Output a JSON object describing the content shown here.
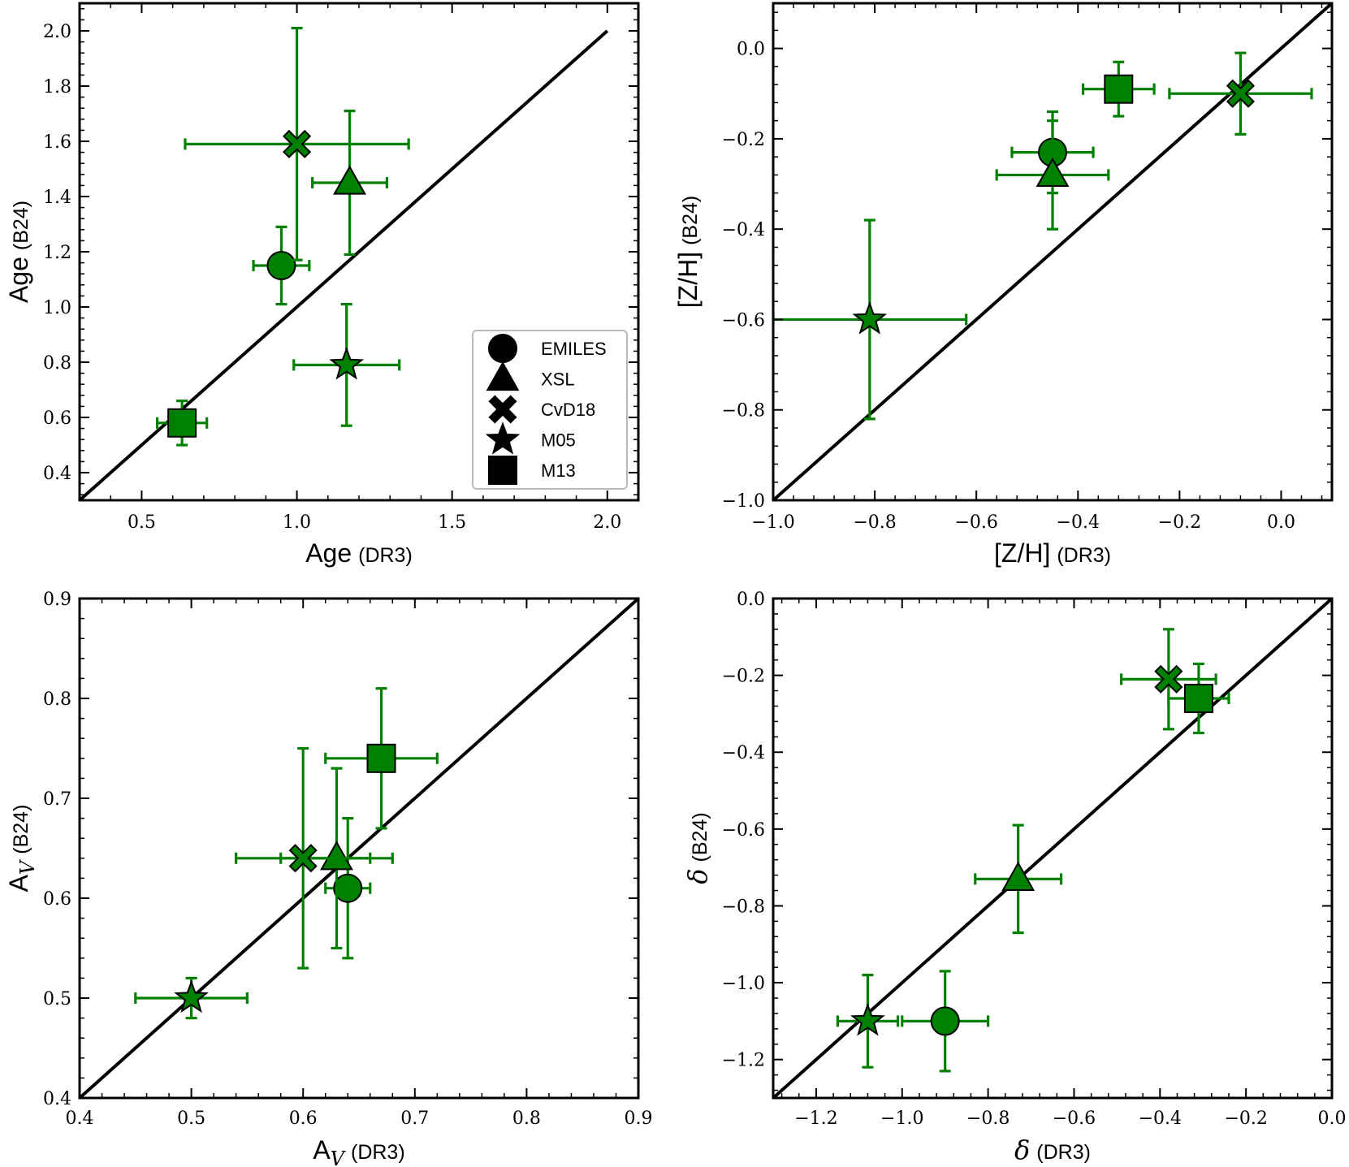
{
  "chart_data": [
    {
      "type": "scatter",
      "id": "age",
      "xlabel": {
        "main": "Age",
        "sub": "(DR3)"
      },
      "ylabel": {
        "main": "Age",
        "sub": "(B24)"
      },
      "xlim": [
        0.3,
        2.1
      ],
      "ylim": [
        0.3,
        2.1
      ],
      "xticks": [
        0.5,
        1.0,
        1.5,
        2.0
      ],
      "xtick_labels": [
        "0.5",
        "1.0",
        "1.5",
        "2.0"
      ],
      "yticks": [
        0.4,
        0.6,
        0.8,
        1.0,
        1.2,
        1.4,
        1.6,
        1.8,
        2.0
      ],
      "ytick_labels": [
        "0.4",
        "0.6",
        "0.8",
        "1.0",
        "1.2",
        "1.4",
        "1.6",
        "1.8",
        "2.0"
      ],
      "one_to_one": [
        0.3,
        2.0
      ],
      "legend": {
        "position": "lower-right",
        "entries": [
          {
            "marker": "circle",
            "label": "EMILES"
          },
          {
            "marker": "triangle",
            "label": "XSL"
          },
          {
            "marker": "cross",
            "label": "CvD18"
          },
          {
            "marker": "star",
            "label": "M05"
          },
          {
            "marker": "square",
            "label": "M13"
          }
        ]
      },
      "series": [
        {
          "name": "EMILES",
          "marker": "circle",
          "x": 0.95,
          "y": 1.15,
          "xerr": [
            0.09,
            0.09
          ],
          "yerr": [
            0.14,
            0.14
          ]
        },
        {
          "name": "XSL",
          "marker": "triangle",
          "x": 1.17,
          "y": 1.45,
          "xerr": [
            0.12,
            0.12
          ],
          "yerr": [
            0.26,
            0.26
          ]
        },
        {
          "name": "CvD18",
          "marker": "cross",
          "x": 1.0,
          "y": 1.59,
          "xerr": [
            0.36,
            0.36
          ],
          "yerr": [
            0.42,
            0.42
          ]
        },
        {
          "name": "M05",
          "marker": "star",
          "x": 1.16,
          "y": 0.79,
          "xerr": [
            0.17,
            0.17
          ],
          "yerr": [
            0.22,
            0.22
          ]
        },
        {
          "name": "M13",
          "marker": "square",
          "x": 0.63,
          "y": 0.58,
          "xerr": [
            0.08,
            0.08
          ],
          "yerr": [
            0.08,
            0.08
          ]
        }
      ]
    },
    {
      "type": "scatter",
      "id": "zh",
      "xlabel": {
        "main": "[Z/H]",
        "sub": "(DR3)"
      },
      "ylabel": {
        "main": "[Z/H]",
        "sub": "(B24)"
      },
      "xlim": [
        -1.0,
        0.1
      ],
      "ylim": [
        -1.0,
        0.1
      ],
      "xticks": [
        -1.0,
        -0.8,
        -0.6,
        -0.4,
        -0.2,
        0.0
      ],
      "xtick_labels": [
        "−1.0",
        "−0.8",
        "−0.6",
        "−0.4",
        "−0.2",
        "0.0"
      ],
      "yticks": [
        -1.0,
        -0.8,
        -0.6,
        -0.4,
        -0.2,
        0.0
      ],
      "ytick_labels": [
        "−1.0",
        "−0.8",
        "−0.6",
        "−0.4",
        "−0.2",
        "0.0"
      ],
      "one_to_one": [
        -1.0,
        0.1
      ],
      "series": [
        {
          "name": "EMILES",
          "marker": "circle",
          "x": -0.45,
          "y": -0.23,
          "xerr": [
            0.08,
            0.08
          ],
          "yerr": [
            0.09,
            0.09
          ]
        },
        {
          "name": "XSL",
          "marker": "triangle",
          "x": -0.45,
          "y": -0.28,
          "xerr": [
            0.11,
            0.11
          ],
          "yerr": [
            0.12,
            0.12
          ]
        },
        {
          "name": "CvD18",
          "marker": "cross",
          "x": -0.08,
          "y": -0.1,
          "xerr": [
            0.14,
            0.14
          ],
          "yerr": [
            0.09,
            0.09
          ]
        },
        {
          "name": "M05",
          "marker": "star",
          "x": -0.81,
          "y": -0.6,
          "xerr": [
            0.19,
            0.19
          ],
          "yerr": [
            0.22,
            0.22
          ]
        },
        {
          "name": "M13",
          "marker": "square",
          "x": -0.32,
          "y": -0.09,
          "xerr": [
            0.07,
            0.07
          ],
          "yerr": [
            0.06,
            0.06
          ]
        }
      ]
    },
    {
      "type": "scatter",
      "id": "av",
      "xlabel": {
        "main": "A",
        "math": "V",
        "sub": "(DR3)"
      },
      "ylabel": {
        "main": "A",
        "math": "V",
        "sub": "(B24)"
      },
      "xlim": [
        0.4,
        0.9
      ],
      "ylim": [
        0.4,
        0.9
      ],
      "xticks": [
        0.4,
        0.5,
        0.6,
        0.7,
        0.8,
        0.9
      ],
      "xtick_labels": [
        "0.4",
        "0.5",
        "0.6",
        "0.7",
        "0.8",
        "0.9"
      ],
      "yticks": [
        0.4,
        0.5,
        0.6,
        0.7,
        0.8,
        0.9
      ],
      "ytick_labels": [
        "0.4",
        "0.5",
        "0.6",
        "0.7",
        "0.8",
        "0.9"
      ],
      "one_to_one": [
        0.4,
        0.9
      ],
      "series": [
        {
          "name": "EMILES",
          "marker": "circle",
          "x": 0.64,
          "y": 0.61,
          "xerr": [
            0.02,
            0.02
          ],
          "yerr": [
            0.07,
            0.07
          ]
        },
        {
          "name": "XSL",
          "marker": "triangle",
          "x": 0.63,
          "y": 0.64,
          "xerr": [
            0.05,
            0.05
          ],
          "yerr": [
            0.09,
            0.09
          ]
        },
        {
          "name": "CvD18",
          "marker": "cross",
          "x": 0.6,
          "y": 0.64,
          "xerr": [
            0.06,
            0.06
          ],
          "yerr": [
            0.11,
            0.11
          ]
        },
        {
          "name": "M05",
          "marker": "star",
          "x": 0.5,
          "y": 0.5,
          "xerr": [
            0.05,
            0.05
          ],
          "yerr": [
            0.02,
            0.02
          ]
        },
        {
          "name": "M13",
          "marker": "square",
          "x": 0.67,
          "y": 0.74,
          "xerr": [
            0.05,
            0.05
          ],
          "yerr": [
            0.07,
            0.07
          ]
        }
      ]
    },
    {
      "type": "scatter",
      "id": "delta",
      "xlabel": {
        "math": "δ",
        "sub": "(DR3)"
      },
      "ylabel": {
        "math": "δ",
        "sub": "(B24)"
      },
      "xlim": [
        -1.3,
        0.0
      ],
      "ylim": [
        -1.3,
        0.0
      ],
      "xticks": [
        -1.2,
        -1.0,
        -0.8,
        -0.6,
        -0.4,
        -0.2,
        0.0
      ],
      "xtick_labels": [
        "−1.2",
        "−1.0",
        "−0.8",
        "−0.6",
        "−0.4",
        "−0.2",
        "0.0"
      ],
      "yticks": [
        -1.2,
        -1.0,
        -0.8,
        -0.6,
        -0.4,
        -0.2,
        0.0
      ],
      "ytick_labels": [
        "−1.2",
        "−1.0",
        "−0.8",
        "−0.6",
        "−0.4",
        "−0.2",
        "0.0"
      ],
      "one_to_one": [
        -1.3,
        0.0
      ],
      "series": [
        {
          "name": "EMILES",
          "marker": "circle",
          "x": -0.9,
          "y": -1.1,
          "xerr": [
            0.1,
            0.1
          ],
          "yerr": [
            0.13,
            0.13
          ]
        },
        {
          "name": "XSL",
          "marker": "triangle",
          "x": -0.73,
          "y": -0.73,
          "xerr": [
            0.1,
            0.1
          ],
          "yerr": [
            0.14,
            0.14
          ]
        },
        {
          "name": "CvD18",
          "marker": "cross",
          "x": -0.38,
          "y": -0.21,
          "xerr": [
            0.11,
            0.11
          ],
          "yerr": [
            0.13,
            0.13
          ]
        },
        {
          "name": "M05",
          "marker": "star",
          "x": -1.08,
          "y": -1.1,
          "xerr": [
            0.07,
            0.07
          ],
          "yerr": [
            0.12,
            0.12
          ]
        },
        {
          "name": "M13",
          "marker": "square",
          "x": -0.31,
          "y": -0.26,
          "xerr": [
            0.07,
            0.07
          ],
          "yerr": [
            0.09,
            0.09
          ]
        }
      ]
    }
  ],
  "colors": {
    "marker_fill": "#008000",
    "error_bar": "#008000",
    "marker_edge": "#000000",
    "line": "#000000"
  }
}
